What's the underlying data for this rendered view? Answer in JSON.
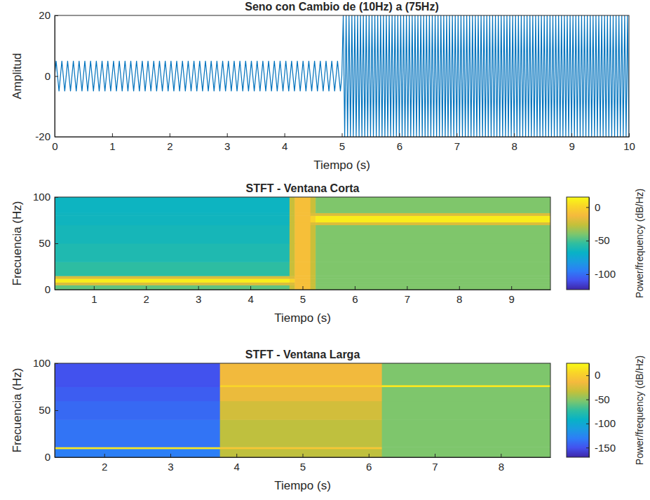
{
  "chart_data": [
    {
      "type": "line",
      "title": "Seno con Cambio de (10Hz) a (75Hz)",
      "x_label": "Tiempo (s)",
      "y_label": "Amplitud",
      "xlim": [
        0,
        10
      ],
      "ylim": [
        -20,
        20
      ],
      "xticks": [
        0,
        1,
        2,
        3,
        4,
        5,
        6,
        7,
        8,
        9,
        10
      ],
      "yticks": [
        -20,
        0,
        20
      ],
      "x": [
        0,
        0.025,
        0.075,
        0.125,
        0.175,
        0.225,
        0.275,
        0.325,
        0.375,
        0.425,
        0.475,
        0.525,
        0.575,
        0.625,
        0.675,
        0.725,
        0.775,
        0.825,
        0.875,
        0.925,
        0.975,
        1.025,
        1.075,
        1.125,
        1.175,
        1.225,
        1.275,
        1.325,
        1.375,
        1.425,
        1.475,
        1.525,
        1.575,
        1.625,
        1.675,
        1.725,
        1.775,
        1.825,
        1.875,
        1.925,
        1.975,
        2.025,
        2.075,
        2.125,
        2.175,
        2.225,
        2.275,
        2.325,
        2.375,
        2.425,
        2.475,
        2.525,
        2.575,
        2.625,
        2.675,
        2.725,
        2.775,
        2.825,
        2.875,
        2.925,
        2.975,
        3.025,
        3.075,
        3.125,
        3.175,
        3.225,
        3.275,
        3.325,
        3.375,
        3.425,
        3.475,
        3.525,
        3.575,
        3.625,
        3.675,
        3.725,
        3.775,
        3.825,
        3.875,
        3.925,
        3.975,
        4.025,
        4.075,
        4.125,
        4.175,
        4.225,
        4.275,
        4.325,
        4.375,
        4.425,
        4.475,
        4.525,
        4.575,
        4.625,
        4.675,
        4.725,
        4.775,
        4.825,
        4.875,
        4.925,
        4.975,
        5,
        5.025,
        5.05,
        5.075,
        5.1,
        5.125,
        5.15,
        5.175,
        5.2,
        5.225,
        5.25,
        5.275,
        5.3,
        5.325,
        5.35,
        5.375,
        5.4,
        5.425,
        5.45,
        5.475,
        5.5,
        5.525,
        5.55,
        5.575,
        5.6,
        5.625,
        5.65,
        5.675,
        5.7,
        5.725,
        5.75,
        5.775,
        5.8,
        5.825,
        5.85,
        5.875,
        5.9,
        5.925,
        5.95,
        5.975,
        6,
        6.025,
        6.05,
        6.075,
        6.1,
        6.125,
        6.15,
        6.175,
        6.2,
        6.225,
        6.25,
        6.275,
        6.3,
        6.325,
        6.35,
        6.375,
        6.4,
        6.425,
        6.45,
        6.475,
        6.5,
        6.525,
        6.55,
        6.575,
        6.6,
        6.625,
        6.65,
        6.675,
        6.7,
        6.725,
        6.75,
        6.775,
        6.8,
        6.825,
        6.85,
        6.875,
        6.9,
        6.925,
        6.95,
        6.975,
        7,
        7.025,
        7.05,
        7.075,
        7.1,
        7.125,
        7.15,
        7.175,
        7.2,
        7.225,
        7.25,
        7.275,
        7.3,
        7.325,
        7.35,
        7.375,
        7.4,
        7.425,
        7.45,
        7.475,
        7.5,
        7.525,
        7.55,
        7.575,
        7.6,
        7.625,
        7.65,
        7.675,
        7.7,
        7.725,
        7.75,
        7.775,
        7.8,
        7.825,
        7.85,
        7.875,
        7.9,
        7.925,
        7.95,
        7.975,
        8,
        8.025,
        8.05,
        8.075,
        8.1,
        8.125,
        8.15,
        8.175,
        8.2,
        8.225,
        8.25,
        8.275,
        8.3,
        8.325,
        8.35,
        8.375,
        8.4,
        8.425,
        8.45,
        8.475,
        8.5,
        8.525,
        8.55,
        8.575,
        8.6,
        8.625,
        8.65,
        8.675,
        8.7,
        8.725,
        8.75,
        8.775,
        8.8,
        8.825,
        8.85,
        8.875,
        8.9,
        8.925,
        8.95,
        8.975,
        9,
        9.025,
        9.05,
        9.075,
        9.1,
        9.125,
        9.15,
        9.175,
        9.2,
        9.225,
        9.25,
        9.275,
        9.3,
        9.325,
        9.35,
        9.375,
        9.4,
        9.425,
        9.45,
        9.475,
        9.5,
        9.525,
        9.55,
        9.575,
        9.6,
        9.625,
        9.65,
        9.675,
        9.7,
        9.725,
        9.75,
        9.775,
        9.8,
        9.825,
        9.85,
        9.875,
        9.9,
        9.925,
        9.95,
        9.975,
        10
      ],
      "series": [
        {
          "color": "#0072bd",
          "values": [
            0,
            5,
            -5,
            5,
            -5,
            5,
            -5,
            5,
            -5,
            5,
            -5,
            5,
            -5,
            5,
            -5,
            5,
            -5,
            5,
            -5,
            5,
            -5,
            5,
            -5,
            5,
            -5,
            5,
            -5,
            5,
            -5,
            5,
            -5,
            5,
            -5,
            5,
            -5,
            5,
            -5,
            5,
            -5,
            5,
            -5,
            5,
            -5,
            5,
            -5,
            5,
            -5,
            5,
            -5,
            5,
            -5,
            5,
            -5,
            5,
            -5,
            5,
            -5,
            5,
            -5,
            5,
            -5,
            5,
            -5,
            5,
            -5,
            5,
            -5,
            5,
            -5,
            5,
            -5,
            5,
            -5,
            5,
            -5,
            5,
            -5,
            5,
            -5,
            5,
            -5,
            5,
            -5,
            5,
            -5,
            5,
            -5,
            5,
            -5,
            5,
            -5,
            5,
            -5,
            5,
            -5,
            5,
            -5,
            5,
            -5,
            5,
            -5,
            0,
            20,
            -20,
            20,
            -20,
            20,
            -20,
            20,
            -20,
            20,
            -20,
            20,
            -20,
            20,
            -20,
            20,
            -20,
            20,
            -20,
            20,
            -20,
            20,
            -20,
            20,
            -20,
            20,
            -20,
            20,
            -20,
            20,
            -20,
            20,
            -20,
            20,
            -20,
            20,
            -20,
            20,
            -20,
            20,
            -20,
            20,
            -20,
            20,
            -20,
            20,
            -20,
            20,
            -20,
            20,
            -20,
            20,
            -20,
            20,
            -20,
            20,
            -20,
            20,
            -20,
            20,
            -20,
            20,
            -20,
            20,
            -20,
            20,
            -20,
            20,
            -20,
            20,
            -20,
            20,
            -20,
            20,
            -20,
            20,
            -20,
            20,
            -20,
            20,
            -20,
            20,
            -20,
            20,
            -20,
            20,
            -20,
            20,
            -20,
            20,
            -20,
            20,
            -20,
            20,
            -20,
            20,
            -20,
            20,
            -20,
            20,
            -20,
            20,
            -20,
            20,
            -20,
            20,
            -20,
            20,
            -20,
            20,
            -20,
            20,
            -20,
            20,
            -20,
            20,
            -20,
            20,
            -20,
            20,
            -20,
            20,
            -20,
            20,
            -20,
            20,
            -20,
            20,
            -20,
            20,
            -20,
            20,
            -20,
            20,
            -20,
            20,
            -20,
            20,
            -20,
            20,
            -20,
            20,
            -20,
            20,
            -20,
            20,
            -20,
            20,
            -20,
            20,
            -20,
            20,
            -20,
            20,
            -20,
            20,
            -20,
            20,
            -20,
            20,
            -20,
            20,
            -20,
            20,
            -20,
            20,
            -20,
            20,
            -20,
            20,
            -20,
            20,
            -20,
            20,
            -20,
            20,
            -20,
            20,
            -20,
            20,
            -20,
            20,
            -20,
            20,
            -20,
            20,
            -20,
            20,
            -20,
            20,
            -20,
            20,
            -20,
            20,
            -20,
            20,
            -20,
            20,
            -20,
            20,
            -20
          ]
        }
      ]
    },
    {
      "type": "heatmap",
      "title": "STFT - Ventana Corta",
      "x_label": "Tiempo (s)",
      "y_label": "Frecuencia (Hz)",
      "xlim": [
        0.25,
        9.75
      ],
      "ylim": [
        0,
        100
      ],
      "xticks": [
        1,
        2,
        3,
        4,
        5,
        6,
        7,
        8,
        9
      ],
      "yticks": [
        0,
        50,
        100
      ],
      "x_edges": [
        0.25,
        4.75,
        4.85,
        5.15,
        5.25,
        9.75
      ],
      "y_edges": [
        0,
        5,
        8,
        12,
        15,
        30,
        50,
        70,
        73,
        80,
        83,
        100
      ],
      "cells": [
        [
          -45,
          -25,
          -10,
          -25,
          -40
        ],
        [
          -20,
          -20,
          -10,
          -25,
          -40
        ],
        [
          10,
          0,
          -10,
          -25,
          -40
        ],
        [
          -20,
          -20,
          -10,
          -25,
          -40
        ],
        [
          -55,
          -25,
          -10,
          -25,
          -40
        ],
        [
          -60,
          -25,
          -10,
          -25,
          -40
        ],
        [
          -63,
          -25,
          -10,
          -25,
          -40
        ],
        [
          -65,
          -25,
          -10,
          -20,
          -20
        ],
        [
          -65,
          -25,
          -10,
          0,
          10
        ],
        [
          -65,
          -25,
          -10,
          -20,
          -20
        ],
        [
          -66,
          -25,
          -10,
          -25,
          -40
        ]
      ],
      "colorbar": {
        "label": "Power/frequency (dB/Hz)",
        "range": [
          -123,
          15
        ],
        "ticks": [
          -100,
          -50,
          0
        ]
      }
    },
    {
      "type": "heatmap",
      "title": "STFT - Ventana Larga",
      "x_label": "Tiempo (s)",
      "y_label": "Frecuencia (Hz)",
      "xlim": [
        1.25,
        8.75
      ],
      "ylim": [
        0,
        100
      ],
      "xticks": [
        2,
        3,
        4,
        5,
        6,
        7,
        8
      ],
      "yticks": [
        0,
        50,
        100
      ],
      "x_edges": [
        1.25,
        3.75,
        6.2,
        8.75
      ],
      "y_edges": [
        0,
        9,
        11,
        40,
        60,
        75,
        77,
        100
      ],
      "cells": [
        [
          -130,
          -35,
          -53
        ],
        [
          15,
          -5,
          -53
        ],
        [
          -135,
          -35,
          -53
        ],
        [
          -140,
          -28,
          -53
        ],
        [
          -145,
          -18,
          -53
        ],
        [
          -150,
          5,
          15
        ],
        [
          -150,
          -15,
          -53
        ]
      ],
      "colorbar": {
        "label": "Power/frequency (dB/Hz)",
        "range": [
          -170,
          25
        ],
        "ticks": [
          -150,
          -100,
          -50,
          0
        ]
      }
    }
  ]
}
